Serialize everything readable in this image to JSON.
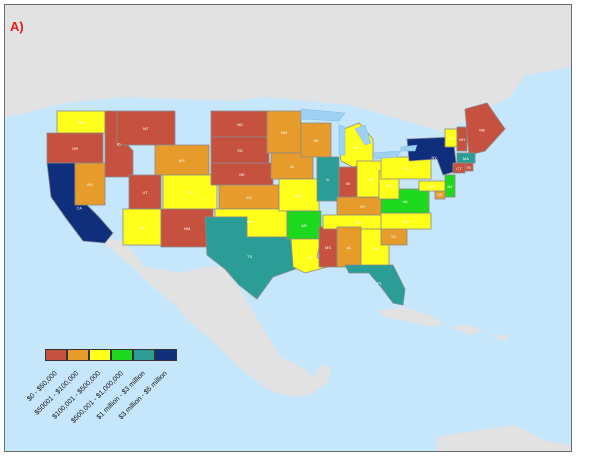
{
  "panel_label": "A)",
  "colors": {
    "ocean": "#c6e6fb",
    "land": "#e2e2e2",
    "lake": "#9fd1f5"
  },
  "legend": {
    "items": [
      {
        "label": "$0 - $50,000",
        "color": "#c5513e"
      },
      {
        "label": "$50001 - $100,000",
        "color": "#e69b2b"
      },
      {
        "label": "$100,001 - $500,000",
        "color": "#ffff1a"
      },
      {
        "label": "$500,001 - $1,000,000",
        "color": "#1ed81e"
      },
      {
        "label": "$1 million - $3 million",
        "color": "#2a9e96"
      },
      {
        "label": "$3 million - $5 million",
        "color": "#0f2f7c"
      }
    ]
  },
  "states": [
    {
      "abbr": "WA",
      "class": 2
    },
    {
      "abbr": "OR",
      "class": 0
    },
    {
      "abbr": "CA",
      "class": 5
    },
    {
      "abbr": "NV",
      "class": 1
    },
    {
      "abbr": "ID",
      "class": 0
    },
    {
      "abbr": "MT",
      "class": 0
    },
    {
      "abbr": "WY",
      "class": 1
    },
    {
      "abbr": "UT",
      "class": 0
    },
    {
      "abbr": "AZ",
      "class": 2
    },
    {
      "abbr": "CO",
      "class": 2
    },
    {
      "abbr": "NM",
      "class": 0
    },
    {
      "abbr": "ND",
      "class": 0
    },
    {
      "abbr": "SD",
      "class": 0
    },
    {
      "abbr": "NE",
      "class": 0
    },
    {
      "abbr": "KS",
      "class": 1
    },
    {
      "abbr": "OK",
      "class": 2
    },
    {
      "abbr": "TX",
      "class": 4
    },
    {
      "abbr": "MN",
      "class": 1
    },
    {
      "abbr": "IA",
      "class": 1
    },
    {
      "abbr": "MO",
      "class": 2
    },
    {
      "abbr": "AR",
      "class": 3
    },
    {
      "abbr": "LA",
      "class": 2
    },
    {
      "abbr": "WI",
      "class": 1
    },
    {
      "abbr": "IL",
      "class": 4
    },
    {
      "abbr": "MS",
      "class": 0
    },
    {
      "abbr": "MI",
      "class": 2
    },
    {
      "abbr": "IN",
      "class": 0
    },
    {
      "abbr": "KY",
      "class": 1
    },
    {
      "abbr": "TN",
      "class": 2
    },
    {
      "abbr": "AL",
      "class": 1
    },
    {
      "abbr": "OH",
      "class": 2
    },
    {
      "abbr": "GA",
      "class": 2
    },
    {
      "abbr": "FL",
      "class": 4
    },
    {
      "abbr": "SC",
      "class": 1
    },
    {
      "abbr": "NC",
      "class": 2
    },
    {
      "abbr": "VA",
      "class": 3
    },
    {
      "abbr": "WV",
      "class": 2
    },
    {
      "abbr": "PA",
      "class": 2
    },
    {
      "abbr": "NY",
      "class": 5
    },
    {
      "abbr": "VT",
      "class": 2
    },
    {
      "abbr": "NH",
      "class": 0
    },
    {
      "abbr": "ME",
      "class": 0
    },
    {
      "abbr": "MA",
      "class": 4
    },
    {
      "abbr": "CT",
      "class": 0
    },
    {
      "abbr": "RI",
      "class": 0
    },
    {
      "abbr": "NJ",
      "class": 3
    },
    {
      "abbr": "DE",
      "class": 1
    },
    {
      "abbr": "MD",
      "class": 2
    }
  ]
}
